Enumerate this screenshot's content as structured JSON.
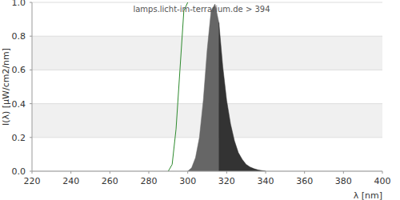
{
  "chart_data": {
    "type": "area",
    "title": "lamps.licht-im-terrarium.de > 394",
    "x_label": "λ [nm]",
    "y_label": "I(λ)  [µW/cm2/nm]",
    "x": [
      290,
      292,
      294,
      296,
      298,
      300,
      302,
      304,
      306,
      308,
      310,
      312,
      314,
      316,
      318,
      320,
      322,
      324,
      326,
      328,
      330,
      332,
      334,
      336,
      338,
      340
    ],
    "series": [
      {
        "type": "area",
        "color": "#666666",
        "values": [
          null,
          null,
          null,
          null,
          null,
          0,
          0.02,
          0.08,
          0.2,
          0.42,
          0.72,
          0.95,
          0.99,
          0.88,
          null,
          null,
          null,
          null,
          null,
          null,
          null,
          null,
          null,
          null,
          null,
          null
        ]
      },
      {
        "type": "area",
        "color": "#333333",
        "values": [
          null,
          null,
          null,
          null,
          null,
          null,
          null,
          null,
          null,
          null,
          null,
          null,
          null,
          0.88,
          0.62,
          0.42,
          0.28,
          0.18,
          0.11,
          0.07,
          0.04,
          0.025,
          0.015,
          0.008,
          0.004,
          0
        ]
      },
      {
        "type": "line",
        "color": "#2e8b2e",
        "values": [
          0,
          0.04,
          0.25,
          0.6,
          0.95,
          1.0,
          null,
          null,
          null,
          null,
          null,
          null,
          null,
          null,
          null,
          null,
          null,
          null,
          null,
          null,
          null,
          null,
          null,
          null,
          null,
          null
        ]
      }
    ],
    "xlim": [
      220,
      400
    ],
    "xticks": [
      220,
      240,
      260,
      280,
      300,
      320,
      340,
      360,
      380,
      400
    ],
    "ylim": [
      0,
      1
    ],
    "yticks": [
      {
        "value": 0,
        "label": "0.0"
      },
      0.2,
      0.4,
      0.6,
      0.8,
      {
        "value": 1,
        "label": "1.0"
      }
    ],
    "grid": true
  }
}
